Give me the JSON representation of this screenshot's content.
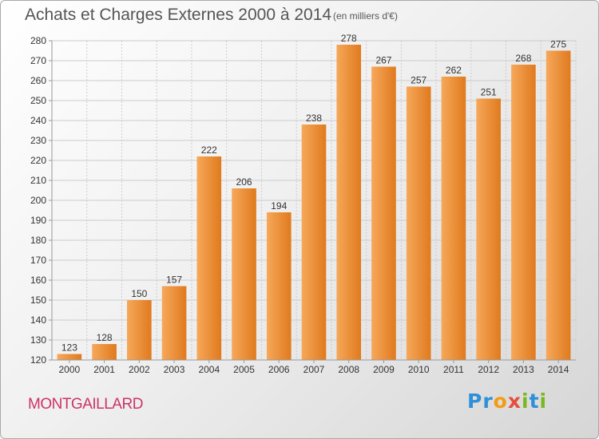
{
  "header": {
    "title": "Achats et Charges Externes 2000 à 2014",
    "subtitle": "(en milliers d'€)"
  },
  "footer": {
    "place": "MONTGAILLARD",
    "logo": "Proxiti",
    "logo_letters": [
      {
        "ch": "P",
        "color": "#2f8fd8"
      },
      {
        "ch": "r",
        "color": "#2f8fd8"
      },
      {
        "ch": "o",
        "color": "#f39c12"
      },
      {
        "ch": "x",
        "color": "#e74c3c"
      },
      {
        "ch": "i",
        "color": "#79b81f"
      },
      {
        "ch": "t",
        "color": "#2f8fd8"
      },
      {
        "ch": "i",
        "color": "#79b81f"
      }
    ]
  },
  "colors": {
    "bar_light": "#f6a85a",
    "bar_dark": "#e07a1e",
    "grid": "#cccccc",
    "axis": "#999999",
    "place": "#cc3366"
  },
  "chart_data": {
    "type": "bar",
    "title": "Achats et Charges Externes 2000 à 2014",
    "subtitle": "(en milliers d'€)",
    "categories": [
      "2000",
      "2001",
      "2002",
      "2003",
      "2004",
      "2005",
      "2006",
      "2007",
      "2008",
      "2009",
      "2010",
      "2011",
      "2012",
      "2013",
      "2014"
    ],
    "values": [
      123,
      128,
      150,
      157,
      222,
      206,
      194,
      238,
      278,
      267,
      257,
      262,
      251,
      268,
      275
    ],
    "ylim": [
      120,
      280
    ],
    "yticks": [
      120,
      130,
      140,
      150,
      160,
      170,
      180,
      190,
      200,
      210,
      220,
      230,
      240,
      250,
      260,
      270,
      280
    ],
    "grid": true,
    "data_labels": true
  }
}
